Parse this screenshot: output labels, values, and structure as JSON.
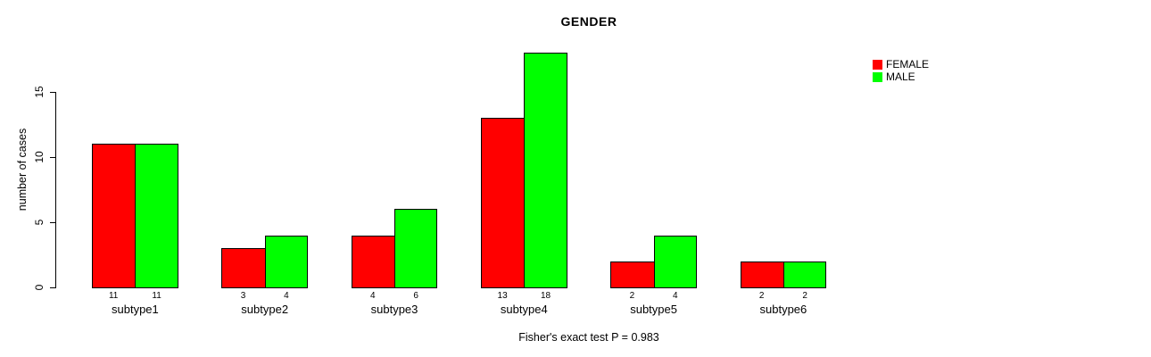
{
  "title": "GENDER",
  "y_axis": {
    "label": "number of cases",
    "ticks": [
      0,
      5,
      10,
      15
    ]
  },
  "footnote": "Fisher's exact test P = 0.983",
  "legend": {
    "items": [
      {
        "label": "FEMALE",
        "color": "#ff0000"
      },
      {
        "label": "MALE",
        "color": "#00ff00"
      }
    ]
  },
  "chart_data": {
    "type": "bar",
    "title": "GENDER",
    "ylabel": "number of cases",
    "xlabel": "",
    "categories": [
      "subtype1",
      "subtype2",
      "subtype3",
      "subtype4",
      "subtype5",
      "subtype6"
    ],
    "series": [
      {
        "name": "FEMALE",
        "color": "#ff0000",
        "values": [
          11,
          3,
          4,
          13,
          2,
          2
        ]
      },
      {
        "name": "MALE",
        "color": "#00ff00",
        "values": [
          11,
          4,
          6,
          18,
          4,
          2
        ]
      }
    ],
    "bar_value_labels": [
      [
        11,
        11
      ],
      [
        3,
        4
      ],
      [
        4,
        6
      ],
      [
        13,
        18
      ],
      [
        2,
        4
      ],
      [
        2,
        2
      ]
    ],
    "yticks": [
      0,
      5,
      10,
      15
    ],
    "ylim": [
      0,
      18
    ],
    "grid": false,
    "legend_position": "top-right",
    "annotation": "Fisher's exact test P = 0.983"
  }
}
